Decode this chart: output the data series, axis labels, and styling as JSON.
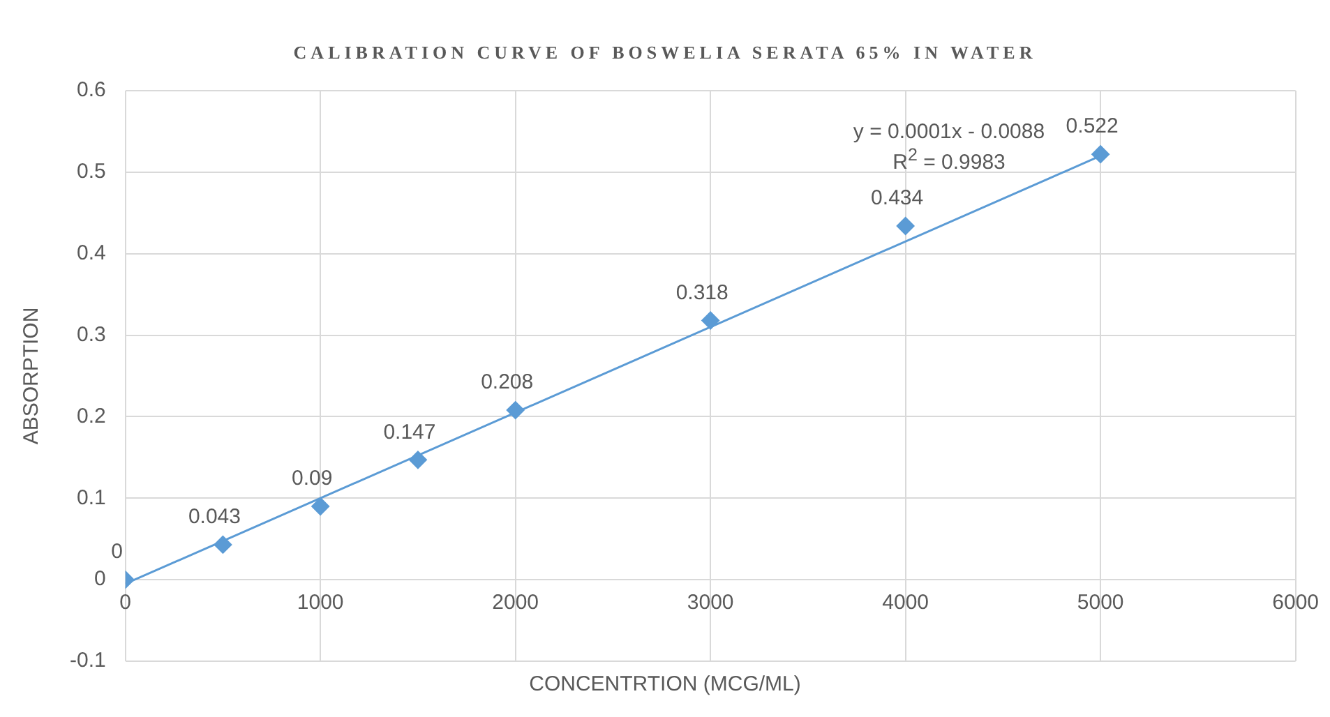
{
  "chart_data": {
    "type": "scatter",
    "title": "CALIBRATION CURVE OF BOSWELIA SERATA 65% IN WATER",
    "xlabel": "CONCENTRTION (MCG/ML)",
    "ylabel": "ABSORPTION",
    "x": [
      0,
      500,
      1000,
      1500,
      2000,
      3000,
      4000,
      5000
    ],
    "series": [
      {
        "marker": "diamond",
        "color": "#5b9bd5",
        "values": [
          0,
          0.043,
          0.09,
          0.147,
          0.208,
          0.318,
          0.434,
          0.522
        ],
        "value_labels": [
          "0",
          "0.043",
          "0.09",
          "0.147",
          "0.208",
          "0.318",
          "0.434",
          "0.522"
        ]
      },
      {
        "type": "line",
        "color": "#5b9bd5",
        "x": [
          0,
          5000
        ],
        "values": [
          -0.005,
          0.52
        ],
        "marker": "none"
      }
    ],
    "grid": true,
    "xlim": [
      0,
      6000
    ],
    "xticks": [
      0,
      1000,
      2000,
      3000,
      4000,
      5000,
      6000
    ],
    "ylim": [
      -0.1,
      0.6
    ],
    "yticks": [
      -0.1,
      0,
      0.1,
      0.2,
      0.3,
      0.4,
      0.5,
      0.6
    ],
    "annotations": [
      "y = 0.0001x - 0.0088",
      "R$^{2}$ = 0.9983"
    ]
  }
}
